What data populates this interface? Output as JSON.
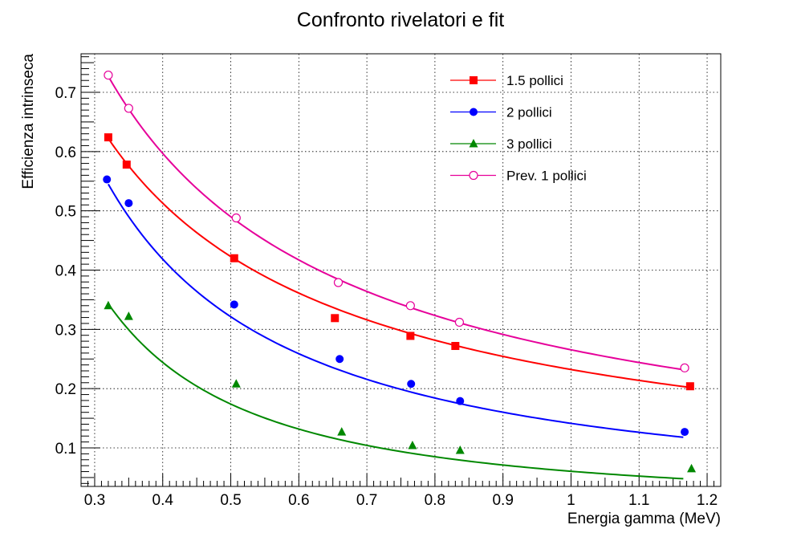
{
  "chart_data": {
    "type": "scatter",
    "title": "Confronto rivelatori e fit",
    "xlabel": "Energia gamma (MeV)",
    "ylabel": "Efficienza intrinseca",
    "xlim": [
      0.28,
      1.22
    ],
    "ylim": [
      0.035,
      0.765
    ],
    "xticks": [
      0.3,
      0.4,
      0.5,
      0.6,
      0.7,
      0.8,
      0.9,
      1,
      1.1,
      1.2
    ],
    "xtick_labels": [
      "0.3",
      "0.4",
      "0.5",
      "0.6",
      "0.7",
      "0.8",
      "0.9",
      "1",
      "1.1",
      "1.2"
    ],
    "yticks": [
      0.1,
      0.2,
      0.3,
      0.4,
      0.5,
      0.6,
      0.7
    ],
    "ytick_labels": [
      "0.1",
      "0.2",
      "0.3",
      "0.4",
      "0.5",
      "0.6",
      "0.7"
    ],
    "grid": true,
    "legend_position": "top-right",
    "series": [
      {
        "name": "1.5 pollici",
        "color": "#ff0000",
        "marker": "square",
        "x": [
          0.32,
          0.347,
          0.505,
          0.653,
          0.764,
          0.83,
          1.175
        ],
        "y": [
          0.624,
          0.578,
          0.42,
          0.319,
          0.289,
          0.272,
          0.204
        ],
        "fit": {
          "x_range": [
            0.32,
            1.175
          ],
          "y_range": [
            0.622,
            0.202
          ]
        }
      },
      {
        "name": "2 pollici",
        "color": "#0000ff",
        "marker": "circle",
        "x": [
          0.318,
          0.35,
          0.505,
          0.66,
          0.765,
          0.837,
          1.167
        ],
        "y": [
          0.553,
          0.513,
          0.342,
          0.25,
          0.208,
          0.179,
          0.127
        ],
        "fit": {
          "x_range": [
            0.32,
            1.165
          ],
          "y_range": [
            0.545,
            0.118
          ]
        }
      },
      {
        "name": "3 pollici",
        "color": "#008800",
        "marker": "triangle",
        "x": [
          0.32,
          0.35,
          0.508,
          0.663,
          0.767,
          0.837,
          1.177
        ],
        "y": [
          0.34,
          0.322,
          0.208,
          0.127,
          0.104,
          0.096,
          0.065
        ],
        "fit": {
          "x_range": [
            0.32,
            1.165
          ],
          "y_range": [
            0.343,
            0.048
          ]
        }
      },
      {
        "name": "Prev. 1 pollici",
        "color": "#e6009a",
        "marker": "open-circle",
        "x": [
          0.32,
          0.35,
          0.508,
          0.658,
          0.764,
          0.836,
          1.167
        ],
        "y": [
          0.729,
          0.673,
          0.488,
          0.379,
          0.34,
          0.312,
          0.235
        ],
        "fit": {
          "x_range": [
            0.32,
            1.165
          ],
          "y_range": [
            0.727,
            0.232
          ]
        }
      }
    ]
  }
}
